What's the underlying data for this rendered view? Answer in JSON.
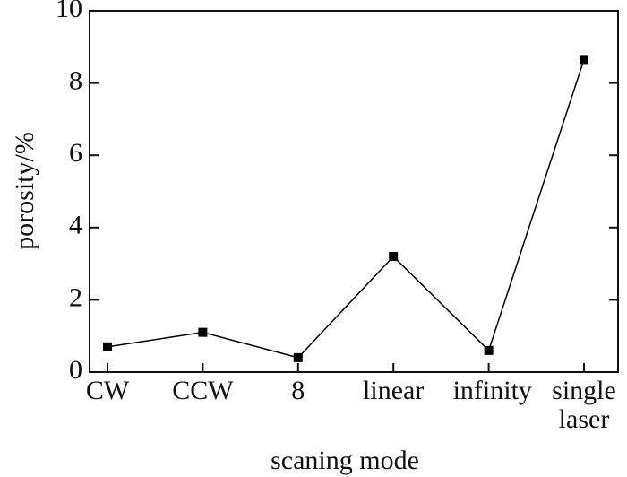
{
  "chart_data": {
    "type": "line",
    "x_label": "scaning mode",
    "y_label": "porosity/%",
    "categories": [
      "CW",
      "CCW",
      "8",
      "linear",
      "infinity",
      "single laser"
    ],
    "values": [
      0.7,
      1.1,
      0.4,
      3.2,
      0.6,
      8.65
    ],
    "color": "#000000",
    "ylim": [
      0,
      10
    ],
    "yticks": [
      0,
      2,
      4,
      6,
      8,
      10
    ]
  }
}
